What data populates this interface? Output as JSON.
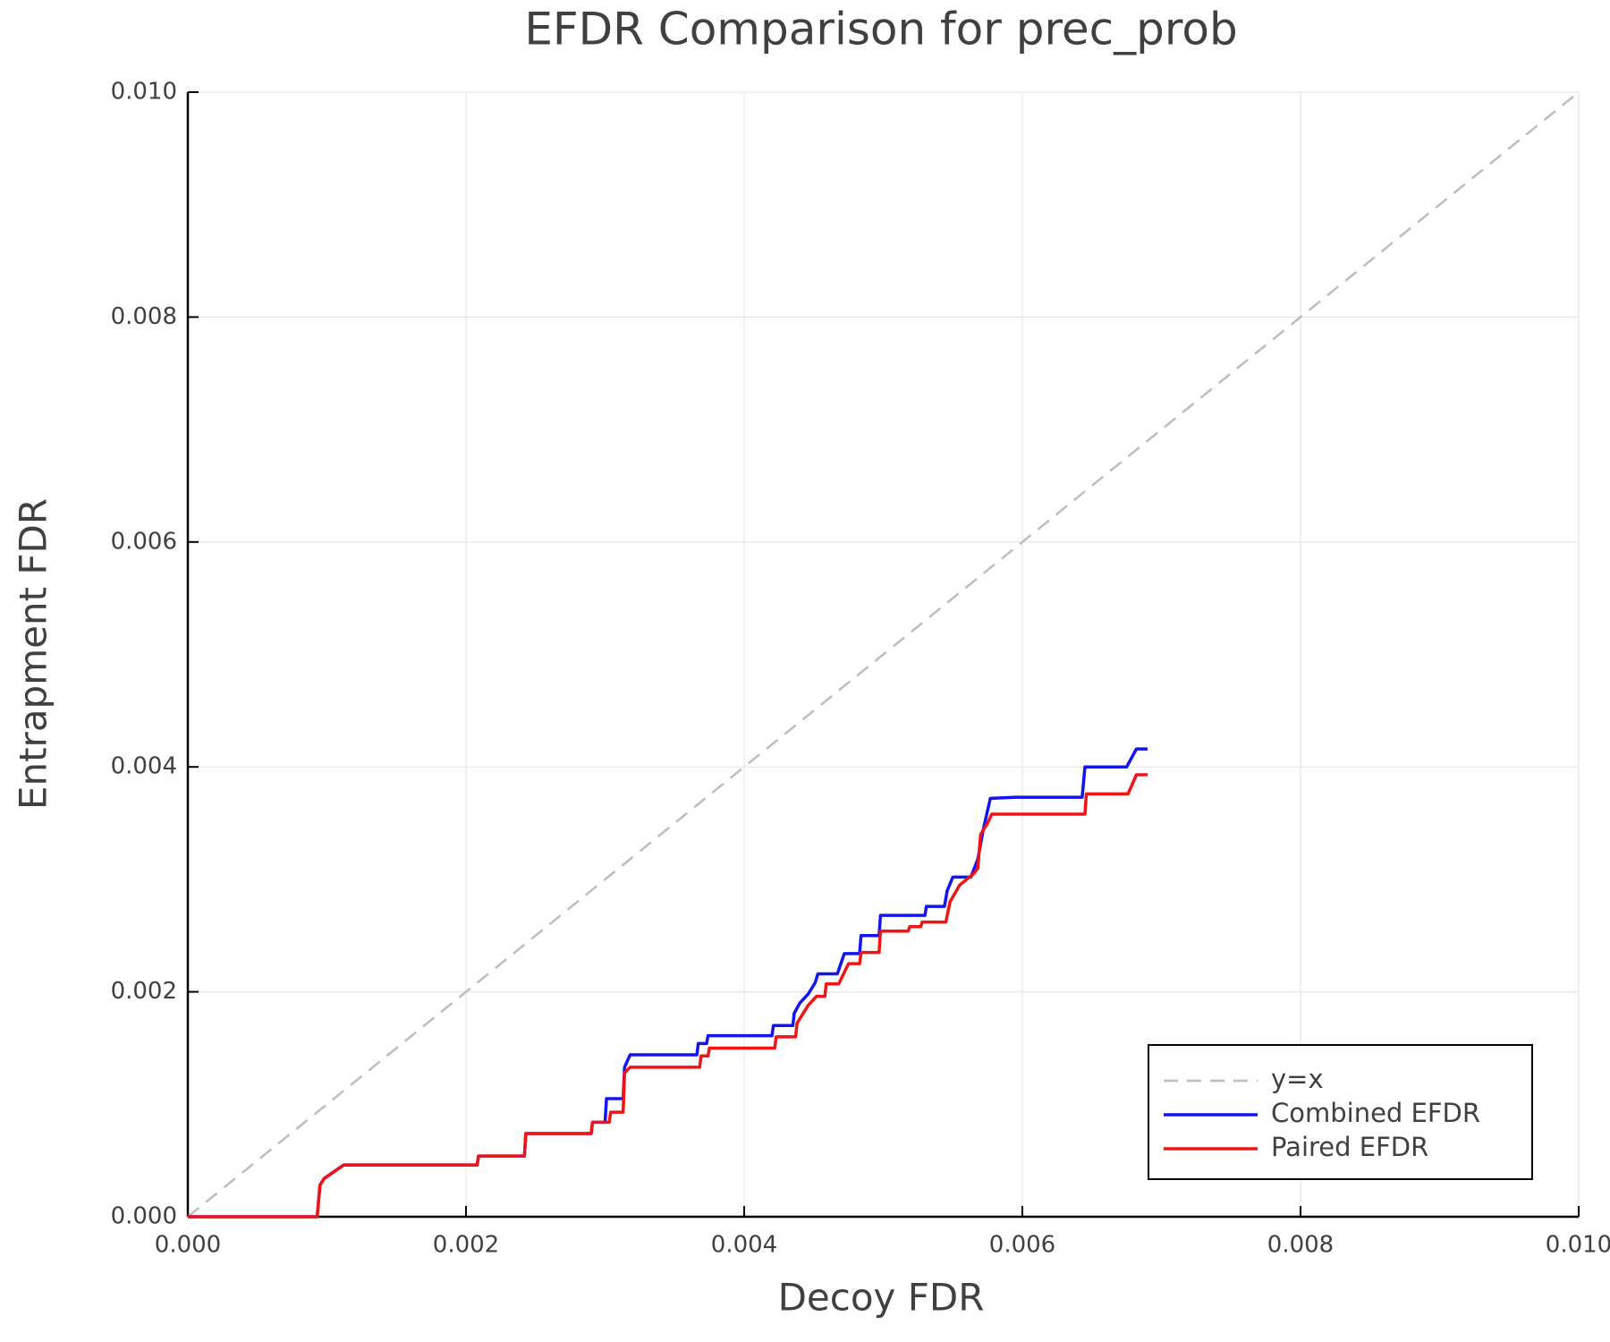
{
  "chart_data": {
    "type": "line",
    "title": "EFDR Comparison for prec_prob",
    "xlabel": "Decoy FDR",
    "ylabel": "Entrapment FDR",
    "xlim": [
      0,
      0.01
    ],
    "ylim": [
      0,
      0.01
    ],
    "xticks": [
      {
        "value": 0,
        "label": "0.000"
      },
      {
        "value": 0.002,
        "label": "0.002"
      },
      {
        "value": 0.004,
        "label": "0.004"
      },
      {
        "value": 0.006,
        "label": "0.006"
      },
      {
        "value": 0.008,
        "label": "0.008"
      },
      {
        "value": 0.01,
        "label": "0.010"
      }
    ],
    "yticks": [
      {
        "value": 0,
        "label": "0.000"
      },
      {
        "value": 0.002,
        "label": "0.002"
      },
      {
        "value": 0.004,
        "label": "0.004"
      },
      {
        "value": 0.006,
        "label": "0.006"
      },
      {
        "value": 0.008,
        "label": "0.008"
      },
      {
        "value": 0.01,
        "label": "0.010"
      }
    ],
    "grid": true,
    "legend": "lower right",
    "series": [
      {
        "name": "y=x",
        "color": "#bdbdbd",
        "style": "dashed",
        "x": [
          0,
          0.01
        ],
        "values": [
          0,
          0.01
        ]
      },
      {
        "name": "Combined EFDR",
        "color": "#1414f0",
        "style": "solid",
        "x": [
          0,
          0.00093,
          0.00095,
          0.00098,
          0.00112,
          0.00208,
          0.00209,
          0.00242,
          0.00243,
          0.0029,
          0.00291,
          0.003,
          0.00301,
          0.00313,
          0.00314,
          0.00318,
          0.00366,
          0.00367,
          0.00373,
          0.00374,
          0.0042,
          0.00421,
          0.00435,
          0.00436,
          0.0044,
          0.00446,
          0.00451,
          0.00453,
          0.00467,
          0.00472,
          0.00483,
          0.00484,
          0.00497,
          0.00498,
          0.0053,
          0.00531,
          0.00544,
          0.00546,
          0.0055,
          0.00563,
          0.00568,
          0.00572,
          0.00577,
          0.00595,
          0.00643,
          0.00645,
          0.00675,
          0.00682,
          0.0069
        ],
        "values": [
          0,
          0,
          0.00028,
          0.00034,
          0.00046,
          0.00046,
          0.00054,
          0.00054,
          0.00074,
          0.00074,
          0.00084,
          0.00084,
          0.00105,
          0.00105,
          0.00133,
          0.00144,
          0.00144,
          0.00154,
          0.00154,
          0.00161,
          0.00161,
          0.0017,
          0.0017,
          0.00181,
          0.0019,
          0.00198,
          0.00208,
          0.00216,
          0.00216,
          0.00234,
          0.00234,
          0.0025,
          0.0025,
          0.00268,
          0.00268,
          0.00276,
          0.00276,
          0.0029,
          0.00302,
          0.00302,
          0.00318,
          0.00345,
          0.00372,
          0.00373,
          0.00373,
          0.004,
          0.004,
          0.00416,
          0.00416
        ]
      },
      {
        "name": "Paired EFDR",
        "color": "#f01414",
        "style": "solid",
        "x": [
          0,
          0.00093,
          0.00095,
          0.00098,
          0.00112,
          0.00208,
          0.00209,
          0.00242,
          0.00243,
          0.0029,
          0.00291,
          0.00303,
          0.00304,
          0.00313,
          0.00314,
          0.00318,
          0.00368,
          0.00369,
          0.00374,
          0.00375,
          0.00422,
          0.00423,
          0.00437,
          0.00438,
          0.00446,
          0.00452,
          0.00458,
          0.00459,
          0.00468,
          0.00475,
          0.00483,
          0.00484,
          0.00497,
          0.00498,
          0.00518,
          0.00519,
          0.00527,
          0.00528,
          0.00545,
          0.00548,
          0.00555,
          0.00565,
          0.00568,
          0.0057,
          0.00575,
          0.00578,
          0.00645,
          0.00646,
          0.00676,
          0.00682,
          0.0069
        ],
        "values": [
          0,
          0,
          0.00028,
          0.00034,
          0.00046,
          0.00046,
          0.00054,
          0.00054,
          0.00074,
          0.00074,
          0.00084,
          0.00084,
          0.00093,
          0.00093,
          0.00128,
          0.00133,
          0.00133,
          0.00143,
          0.00143,
          0.0015,
          0.0015,
          0.0016,
          0.0016,
          0.00172,
          0.00188,
          0.00196,
          0.00196,
          0.00207,
          0.00207,
          0.00225,
          0.00225,
          0.00235,
          0.00235,
          0.00254,
          0.00254,
          0.00258,
          0.00258,
          0.00262,
          0.00262,
          0.0028,
          0.00295,
          0.00305,
          0.0031,
          0.0034,
          0.0035,
          0.00358,
          0.00358,
          0.00376,
          0.00376,
          0.00393,
          0.00393
        ]
      }
    ]
  }
}
